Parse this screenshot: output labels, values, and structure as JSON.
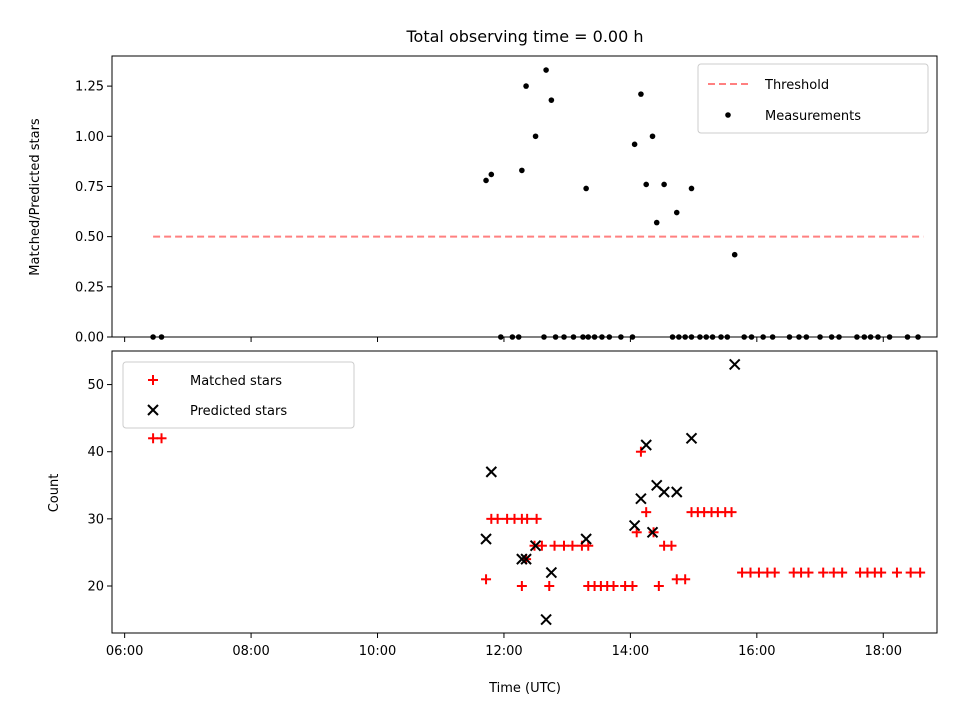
{
  "chart_data": [
    {
      "type": "scatter",
      "title": "Total observing time = 0.00 h",
      "xlabel": "",
      "ylabel": "Matched/Predicted stars",
      "xlim": [
        "06:00",
        "19:00"
      ],
      "ylim": [
        0,
        1.4
      ],
      "yticks": [
        "0.00",
        "0.25",
        "0.50",
        "0.75",
        "1.00",
        "1.25"
      ],
      "legend_position": "top-right",
      "threshold": {
        "name": "Threshold",
        "y": 0.5,
        "x_range": [
          "06:27",
          "18:38"
        ],
        "color": "#ff8080"
      },
      "series": [
        {
          "name": "Measurements",
          "color": "#000000",
          "points": [
            [
              "06:27",
              0
            ],
            [
              "06:35",
              0
            ],
            [
              "11:43",
              0.78
            ],
            [
              "11:48",
              0.81
            ],
            [
              "12:17",
              0.83
            ],
            [
              "12:21",
              1.25
            ],
            [
              "12:30",
              1.0
            ],
            [
              "12:40",
              1.33
            ],
            [
              "12:45",
              1.18
            ],
            [
              "13:18",
              0.74
            ],
            [
              "14:04",
              0.96
            ],
            [
              "14:10",
              1.21
            ],
            [
              "14:15",
              0.76
            ],
            [
              "14:21",
              1.0
            ],
            [
              "14:25",
              0.57
            ],
            [
              "14:32",
              0.76
            ],
            [
              "14:44",
              0.62
            ],
            [
              "14:58",
              0.74
            ],
            [
              "15:39",
              0.41
            ],
            [
              "11:57",
              0
            ],
            [
              "12:08",
              0
            ],
            [
              "12:14",
              0
            ],
            [
              "12:38",
              0
            ],
            [
              "12:49",
              0
            ],
            [
              "12:57",
              0
            ],
            [
              "13:06",
              0
            ],
            [
              "13:15",
              0
            ],
            [
              "13:20",
              0
            ],
            [
              "13:26",
              0
            ],
            [
              "13:33",
              0
            ],
            [
              "13:40",
              0
            ],
            [
              "13:51",
              0
            ],
            [
              "14:02",
              0
            ],
            [
              "14:40",
              0
            ],
            [
              "14:46",
              0
            ],
            [
              "14:52",
              0
            ],
            [
              "14:58",
              0
            ],
            [
              "15:06",
              0
            ],
            [
              "15:12",
              0
            ],
            [
              "15:18",
              0
            ],
            [
              "15:26",
              0
            ],
            [
              "15:32",
              0
            ],
            [
              "15:48",
              0
            ],
            [
              "15:55",
              0
            ],
            [
              "16:06",
              0
            ],
            [
              "16:15",
              0
            ],
            [
              "16:31",
              0
            ],
            [
              "16:40",
              0
            ],
            [
              "16:47",
              0
            ],
            [
              "17:00",
              0
            ],
            [
              "17:11",
              0
            ],
            [
              "17:18",
              0
            ],
            [
              "17:35",
              0
            ],
            [
              "17:42",
              0
            ],
            [
              "17:48",
              0
            ],
            [
              "17:55",
              0
            ],
            [
              "18:06",
              0
            ],
            [
              "18:23",
              0
            ],
            [
              "18:33",
              0
            ]
          ]
        }
      ]
    },
    {
      "type": "scatter",
      "title": "",
      "xlabel": "Time (UTC)",
      "ylabel": "Count",
      "xlim": [
        "06:00",
        "19:00"
      ],
      "ylim": [
        13,
        55
      ],
      "xticks": [
        "06:00",
        "08:00",
        "10:00",
        "12:00",
        "14:00",
        "16:00",
        "18:00"
      ],
      "yticks": [
        "20",
        "30",
        "40",
        "50"
      ],
      "legend_position": "top-left",
      "series": [
        {
          "name": "Matched stars",
          "color": "#ff0000",
          "marker": "plus",
          "points": [
            [
              "06:27",
              42
            ],
            [
              "06:35",
              42
            ],
            [
              "11:43",
              21
            ],
            [
              "11:48",
              30
            ],
            [
              "11:54",
              30
            ],
            [
              "12:03",
              30
            ],
            [
              "12:10",
              30
            ],
            [
              "12:17",
              30
            ],
            [
              "12:22",
              30
            ],
            [
              "12:31",
              30
            ],
            [
              "12:17",
              20
            ],
            [
              "12:21",
              24
            ],
            [
              "12:29",
              26
            ],
            [
              "12:36",
              26
            ],
            [
              "12:43",
              20
            ],
            [
              "12:48",
              26
            ],
            [
              "12:57",
              26
            ],
            [
              "13:05",
              26
            ],
            [
              "13:14",
              26
            ],
            [
              "13:20",
              26
            ],
            [
              "13:20",
              20
            ],
            [
              "13:26",
              20
            ],
            [
              "13:32",
              20
            ],
            [
              "13:38",
              20
            ],
            [
              "13:44",
              20
            ],
            [
              "13:55",
              20
            ],
            [
              "14:02",
              20
            ],
            [
              "14:06",
              28
            ],
            [
              "14:10",
              40
            ],
            [
              "14:15",
              31
            ],
            [
              "14:22",
              28
            ],
            [
              "14:27",
              20
            ],
            [
              "14:32",
              26
            ],
            [
              "14:39",
              26
            ],
            [
              "14:44",
              21
            ],
            [
              "14:52",
              21
            ],
            [
              "14:58",
              31
            ],
            [
              "15:04",
              31
            ],
            [
              "15:10",
              31
            ],
            [
              "15:17",
              31
            ],
            [
              "15:23",
              31
            ],
            [
              "15:30",
              31
            ],
            [
              "15:36",
              31
            ],
            [
              "15:46",
              22
            ],
            [
              "15:54",
              22
            ],
            [
              "16:02",
              22
            ],
            [
              "16:10",
              22
            ],
            [
              "16:17",
              22
            ],
            [
              "16:35",
              22
            ],
            [
              "16:42",
              22
            ],
            [
              "16:49",
              22
            ],
            [
              "17:03",
              22
            ],
            [
              "17:13",
              22
            ],
            [
              "17:21",
              22
            ],
            [
              "17:38",
              22
            ],
            [
              "17:45",
              22
            ],
            [
              "17:52",
              22
            ],
            [
              "17:58",
              22
            ],
            [
              "18:13",
              22
            ],
            [
              "18:26",
              22
            ],
            [
              "18:35",
              22
            ]
          ]
        },
        {
          "name": "Predicted stars",
          "color": "#000000",
          "marker": "x",
          "points": [
            [
              "11:43",
              27
            ],
            [
              "11:48",
              37
            ],
            [
              "12:17",
              24
            ],
            [
              "12:21",
              24
            ],
            [
              "12:30",
              26
            ],
            [
              "12:40",
              15
            ],
            [
              "12:45",
              22
            ],
            [
              "13:18",
              27
            ],
            [
              "14:04",
              29
            ],
            [
              "14:10",
              33
            ],
            [
              "14:15",
              41
            ],
            [
              "14:21",
              28
            ],
            [
              "14:25",
              35
            ],
            [
              "14:32",
              34
            ],
            [
              "14:44",
              34
            ],
            [
              "14:58",
              42
            ],
            [
              "15:39",
              53
            ]
          ]
        }
      ]
    }
  ]
}
